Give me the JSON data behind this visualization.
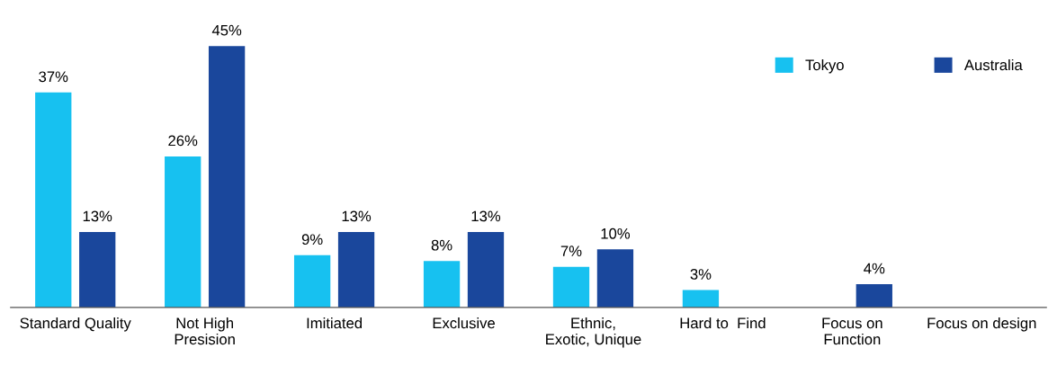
{
  "chart_data": {
    "type": "bar",
    "categories": [
      "Standard Quality",
      "Not High\nPresision",
      "Imitiated",
      "Exclusive",
      "Ethnic,\nExotic, Unique",
      "Hard to  Find",
      "Focus on\nFunction",
      "Focus on design"
    ],
    "series": [
      {
        "name": "Tokyo",
        "color": "#17c1f0",
        "values": [
          37,
          26,
          9,
          8,
          7,
          3,
          null,
          null
        ],
        "value_labels": [
          "37%",
          "26%",
          "9%",
          "8%",
          "7%",
          "3%",
          null,
          null
        ]
      },
      {
        "name": "Australia",
        "color": "#1a479c",
        "values": [
          13,
          45,
          13,
          13,
          10,
          null,
          4,
          null
        ],
        "value_labels": [
          "13%",
          "45%",
          "13%",
          "13%",
          "10%",
          null,
          "4%",
          null
        ]
      }
    ],
    "legend": "top right",
    "grid": false
  }
}
